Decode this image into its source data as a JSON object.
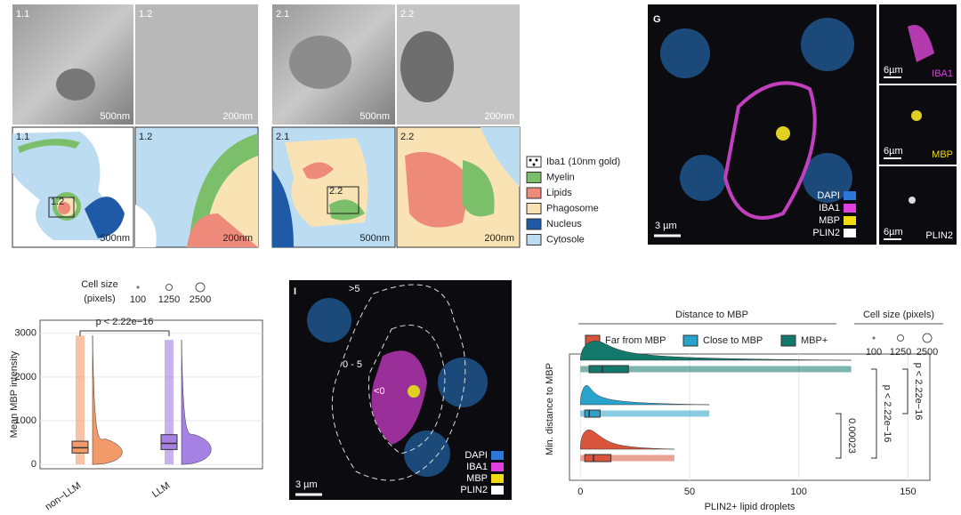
{
  "em_panels": [
    {
      "label": "1.1",
      "scale": "500nm"
    },
    {
      "label": "1.2",
      "scale": "200nm"
    },
    {
      "label": "2.1",
      "scale": "500nm"
    },
    {
      "label": "2.2",
      "scale": "200nm"
    }
  ],
  "schematics": [
    {
      "label": "1.1",
      "inset": "1.2",
      "scale": "500nm"
    },
    {
      "label": "1.2",
      "scale": "200nm"
    },
    {
      "label": "2.1",
      "inset": "2.2",
      "scale": "500nm"
    },
    {
      "label": "2.2",
      "scale": "200nm"
    }
  ],
  "schematic_legend": [
    "Iba1 (10nm gold)",
    "Myelin",
    "Lipids",
    "Phagosome",
    "Nucleus",
    "Cytosole"
  ],
  "panel_g": {
    "letter": "G",
    "legend": [
      "DAPI",
      "IBA1",
      "MBP",
      "PLIN2"
    ],
    "scale": "3 µm",
    "insets": [
      {
        "scale": "6µm",
        "label": "IBA1"
      },
      {
        "scale": "6µm",
        "label": "MBP"
      },
      {
        "scale": "6µm",
        "label": "PLIN2"
      }
    ]
  },
  "panel_i": {
    "letter": "I",
    "zones": [
      ">5",
      "0 - 5",
      "<0"
    ],
    "legend": [
      "DAPI",
      "IBA1",
      "MBP",
      "PLIN2"
    ],
    "scale": "3 µm"
  },
  "chart_data": [
    {
      "type": "raincloud",
      "y_label": "Mean MBP intensity",
      "categories": [
        "non−LLM",
        "LLM"
      ],
      "colors": [
        "#f39a6b",
        "#a581e3"
      ],
      "stats": [
        {
          "min": 0,
          "q1": 260,
          "median": 380,
          "q3": 530,
          "max": 2950
        },
        {
          "min": 0,
          "q1": 340,
          "median": 480,
          "q3": 680,
          "max": 2850
        }
      ],
      "ylim": [
        -100,
        3300
      ],
      "yticks": [
        0,
        1000,
        2000,
        3000
      ],
      "grid": true,
      "annotation": "p < 2.22e−16",
      "size_legend": {
        "title_lines": [
          "Cell size",
          "(pixels)"
        ],
        "sizes": [
          100,
          1250,
          2500
        ]
      }
    },
    {
      "type": "raincloud_h",
      "x_label": "PLIN2+ lipid droplets",
      "y_label": "Min. distance to MBP",
      "legend_title": "Distance to MBP",
      "series": [
        {
          "name": "Far from MBP",
          "color": "#d8553b",
          "stats": {
            "min": 0,
            "q1": 2,
            "median": 6,
            "q3": 14,
            "max": 43
          }
        },
        {
          "name": "Close to MBP",
          "color": "#2aa3cc",
          "stats": {
            "min": 0,
            "q1": 2,
            "median": 4,
            "q3": 9,
            "max": 59
          }
        },
        {
          "name": "MBP+",
          "color": "#13786c",
          "stats": {
            "min": 0,
            "q1": 4,
            "median": 10,
            "q3": 22,
            "max": 124
          }
        }
      ],
      "xlim": [
        -5,
        160
      ],
      "xticks": [
        0,
        50,
        100,
        150
      ],
      "grid": true,
      "annotations": [
        "0.00023",
        "p < 2.22e−16",
        "p < 2.22e−16"
      ],
      "size_legend": {
        "title": "Cell size (pixels)",
        "sizes": [
          100,
          1250,
          2500
        ]
      }
    }
  ]
}
